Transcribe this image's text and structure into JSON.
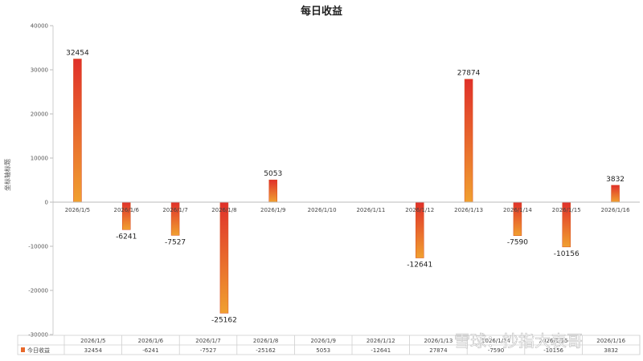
{
  "chart_data": {
    "type": "bar",
    "title": "每日收益",
    "ylabel": "坐标轴标题",
    "xlabel": "",
    "ylim": [
      -30000,
      40000
    ],
    "yticks": [
      40000,
      30000,
      20000,
      10000,
      0,
      -10000,
      -20000,
      -30000
    ],
    "categories": [
      "2026/1/5",
      "2026/1/6",
      "2026/1/7",
      "2026/1/8",
      "2026/1/9",
      "2026/1/10",
      "2026/1/11",
      "2026/1/12",
      "2026/1/13",
      "2026/1/14",
      "2026/1/15",
      "2026/1/16"
    ],
    "series": [
      {
        "name": "今日收益",
        "values": [
          32454,
          -6241,
          -7527,
          -25162,
          5053,
          null,
          null,
          -12641,
          27874,
          -7590,
          -10156,
          3832
        ]
      }
    ],
    "grid": false,
    "legend": "bottom-left (in data table)",
    "colors": {
      "bar_top": "#e0302a",
      "bar_bottom": "#f0a030",
      "legend_swatch": "#e8692b"
    }
  },
  "data_table": {
    "categories": [
      "2026/1/5",
      "2026/1/6",
      "2026/1/7",
      "2026/1/8",
      "2026/1/9",
      "2026/1/12",
      "2026/1/13",
      "2026/1/14",
      "2026/1/15",
      "2026/1/16"
    ],
    "series_name": "今日收益",
    "values": [
      "32454",
      "-6241",
      "-7527",
      "-25162",
      "5053",
      "-12641",
      "27874",
      "-7590",
      "-10156",
      "3832"
    ]
  },
  "watermark": "雪球：抄指大表哥"
}
